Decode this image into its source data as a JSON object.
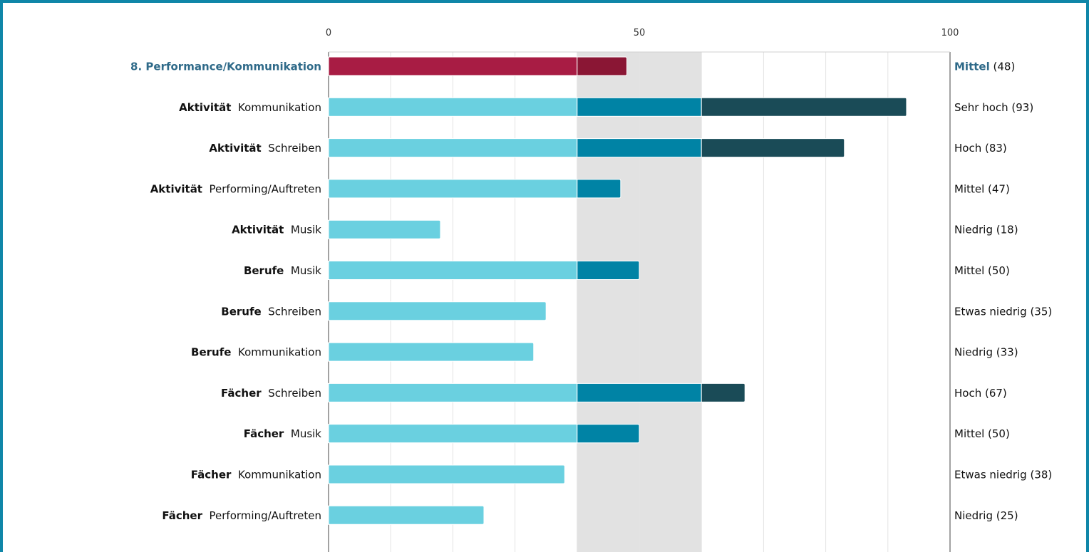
{
  "chart_data": {
    "type": "bar",
    "orientation": "horizontal",
    "xlim": [
      0,
      100
    ],
    "x_ticks": [
      {
        "value": 0,
        "label": "0"
      },
      {
        "value": 50,
        "label": "50"
      },
      {
        "value": 100,
        "label": "100"
      }
    ],
    "grid": true,
    "highlight_band": [
      40,
      60
    ],
    "thresholds": [
      40,
      60
    ],
    "colors": {
      "low": "#6ad0e0",
      "mid": "#0083a5",
      "high": "#1a4b57",
      "header_low": "#a81c44",
      "header_mid": "#8a1634",
      "header_text": "#2f6a89",
      "band": "#e2e2e2",
      "grid": "#e4e4e4",
      "frame": "#0f86a8"
    },
    "rows": [
      {
        "category": "",
        "name": "8. Performance/Kommunikation",
        "value": 48,
        "level": "Mittel",
        "value_text": "(48)",
        "header": true
      },
      {
        "category": "Aktivität",
        "name": "Kommunikation",
        "value": 93,
        "level": "Sehr hoch",
        "value_text": "(93)"
      },
      {
        "category": "Aktivität",
        "name": "Schreiben",
        "value": 83,
        "level": "Hoch",
        "value_text": "(83)"
      },
      {
        "category": "Aktivität",
        "name": "Performing/Auftreten",
        "value": 47,
        "level": "Mittel",
        "value_text": "(47)"
      },
      {
        "category": "Aktivität",
        "name": "Musik",
        "value": 18,
        "level": "Niedrig",
        "value_text": "(18)"
      },
      {
        "category": "Berufe",
        "name": "Musik",
        "value": 50,
        "level": "Mittel",
        "value_text": "(50)"
      },
      {
        "category": "Berufe",
        "name": "Schreiben",
        "value": 35,
        "level": "Etwas niedrig",
        "value_text": "(35)"
      },
      {
        "category": "Berufe",
        "name": "Kommunikation",
        "value": 33,
        "level": "Niedrig",
        "value_text": "(33)"
      },
      {
        "category": "Fächer",
        "name": "Schreiben",
        "value": 67,
        "level": "Hoch",
        "value_text": "(67)"
      },
      {
        "category": "Fächer",
        "name": "Musik",
        "value": 50,
        "level": "Mittel",
        "value_text": "(50)"
      },
      {
        "category": "Fächer",
        "name": "Kommunikation",
        "value": 38,
        "level": "Etwas niedrig",
        "value_text": "(38)"
      },
      {
        "category": "Fächer",
        "name": "Performing/Auftreten",
        "value": 25,
        "level": "Niedrig",
        "value_text": "(25)"
      }
    ]
  }
}
